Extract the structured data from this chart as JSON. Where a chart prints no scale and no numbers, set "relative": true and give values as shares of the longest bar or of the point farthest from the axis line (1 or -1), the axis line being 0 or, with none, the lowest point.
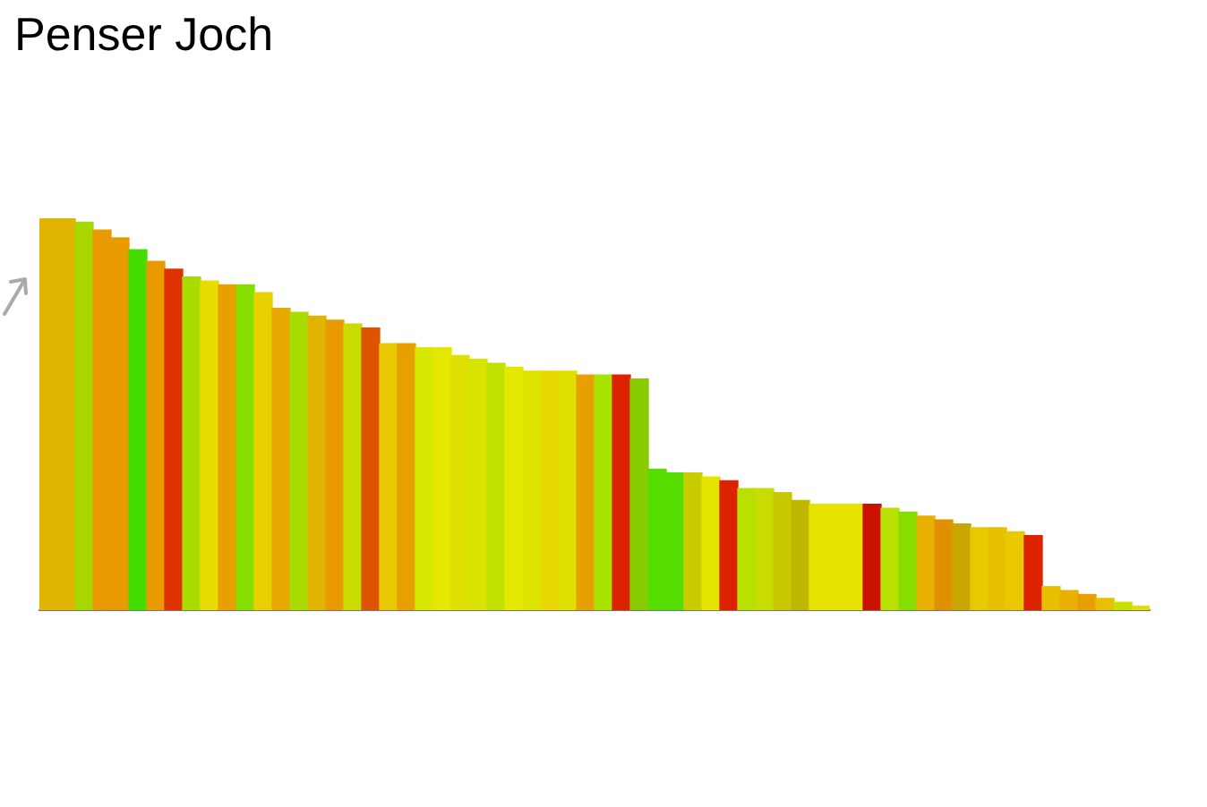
{
  "chart_data": {
    "type": "bar",
    "title": "Penser Joch",
    "relative": true,
    "categories": [
      null,
      null,
      null,
      null,
      null,
      null,
      null,
      null,
      null,
      null,
      null,
      null,
      null,
      null,
      null,
      null,
      null,
      null,
      null,
      null,
      null,
      null,
      null,
      null,
      null,
      null,
      null,
      null,
      null,
      null,
      null,
      null,
      null,
      null,
      null,
      null,
      null,
      null,
      null,
      null,
      null,
      null,
      null,
      null,
      null,
      null,
      null,
      null,
      null,
      null,
      null,
      null,
      null,
      null,
      null,
      null,
      null,
      null,
      null,
      null,
      null,
      null
    ],
    "values": [
      1,
      1,
      0.99,
      0.97,
      0.95,
      0.92,
      0.89,
      0.87,
      0.85,
      0.84,
      0.83,
      0.83,
      0.81,
      0.77,
      0.76,
      0.75,
      0.74,
      0.73,
      0.72,
      0.68,
      0.68,
      0.67,
      0.67,
      0.65,
      0.64,
      0.63,
      0.62,
      0.61,
      0.61,
      0.61,
      0.6,
      0.6,
      0.6,
      0.59,
      0.36,
      0.35,
      0.35,
      0.34,
      0.33,
      0.31,
      0.31,
      0.3,
      0.28,
      0.27,
      0.27,
      0.27,
      0.27,
      0.26,
      0.25,
      0.24,
      0.23,
      0.22,
      0.21,
      0.21,
      0.2,
      0.19,
      0.06,
      0.05,
      0.04,
      0.03,
      0.02,
      0.01
    ],
    "colors": [
      "#e0b400",
      "#e0b400",
      "#a8d800",
      "#e89a00",
      "#e89a00",
      "#44dd00",
      "#e89a00",
      "#dd3300",
      "#a8dc00",
      "#e8dc00",
      "#e8a000",
      "#88dd00",
      "#e8d000",
      "#e8a800",
      "#a8dc00",
      "#e0b400",
      "#e89a00",
      "#c8dc00",
      "#dd5500",
      "#e8c800",
      "#e8a000",
      "#d8e800",
      "#e4e800",
      "#e0e000",
      "#d8e400",
      "#c0e000",
      "#e4e800",
      "#dce400",
      "#e8d800",
      "#e0e000",
      "#e8a000",
      "#a8e400",
      "#dd2200",
      "#88cc00",
      "#55dd00",
      "#55dd00",
      "#c8cc00",
      "#e4e400",
      "#dd2200",
      "#b8e000",
      "#c8dc00",
      "#c8c800",
      "#c0b800",
      "#e8e400",
      "#e8e400",
      "#e8e400",
      "#cc1100",
      "#b8e000",
      "#88dd00",
      "#e8b000",
      "#e09000",
      "#c8a800",
      "#e8c800",
      "#e8c000",
      "#e8c800",
      "#dd2200",
      "#e8c000",
      "#e8b000",
      "#e8a000",
      "#e8c000",
      "#c8e000",
      "#e0e000"
    ]
  }
}
